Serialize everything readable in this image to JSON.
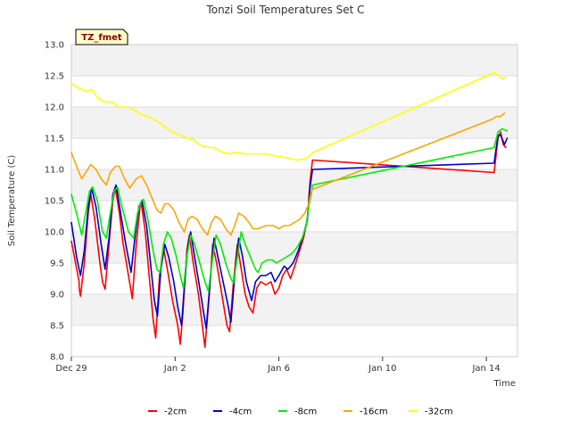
{
  "chart_data": {
    "type": "line",
    "title": "Tonzi Soil Temperatures Set C",
    "xlabel": "Time",
    "ylabel": "Soil Temperature (C)",
    "ylim": [
      8.0,
      13.0
    ],
    "xlim": [
      0,
      17.2
    ],
    "yticks": [
      "8.0",
      "8.5",
      "9.0",
      "9.5",
      "10.0",
      "10.5",
      "11.0",
      "11.5",
      "12.0",
      "12.5",
      "13.0"
    ],
    "xticks": [
      {
        "label": "Dec 29",
        "day": 0
      },
      {
        "label": "Jan 2",
        "day": 4
      },
      {
        "label": "Jan 6",
        "day": 8
      },
      {
        "label": "Jan 10",
        "day": 12
      },
      {
        "label": "Jan 14",
        "day": 16
      }
    ],
    "site_label": "TZ_fmet",
    "legend_position": "bottom",
    "series": [
      {
        "name": "-2cm",
        "color": "#ff0000",
        "points": [
          [
            0.0,
            9.85
          ],
          [
            0.3,
            9.2
          ],
          [
            0.3,
            9.1
          ],
          [
            0.35,
            8.97
          ],
          [
            0.5,
            9.5
          ],
          [
            0.65,
            10.3
          ],
          [
            0.75,
            10.6
          ],
          [
            0.9,
            10.2
          ],
          [
            1.1,
            9.5
          ],
          [
            1.2,
            9.2
          ],
          [
            1.3,
            9.08
          ],
          [
            1.45,
            9.8
          ],
          [
            1.6,
            10.5
          ],
          [
            1.7,
            10.7
          ],
          [
            1.85,
            10.3
          ],
          [
            2.0,
            9.8
          ],
          [
            2.2,
            9.3
          ],
          [
            2.35,
            8.93
          ],
          [
            2.5,
            9.8
          ],
          [
            2.65,
            10.4
          ],
          [
            2.7,
            10.45
          ],
          [
            2.85,
            10.0
          ],
          [
            3.0,
            9.3
          ],
          [
            3.15,
            8.6
          ],
          [
            3.25,
            8.3
          ],
          [
            3.4,
            9.3
          ],
          [
            3.55,
            9.75
          ],
          [
            3.7,
            9.4
          ],
          [
            3.9,
            8.9
          ],
          [
            4.1,
            8.5
          ],
          [
            4.2,
            8.2
          ],
          [
            4.3,
            8.7
          ],
          [
            4.45,
            9.7
          ],
          [
            4.55,
            9.95
          ],
          [
            4.7,
            9.5
          ],
          [
            4.9,
            9.0
          ],
          [
            5.05,
            8.5
          ],
          [
            5.15,
            8.15
          ],
          [
            5.3,
            8.9
          ],
          [
            5.45,
            9.8
          ],
          [
            5.6,
            9.5
          ],
          [
            5.8,
            9.0
          ],
          [
            6.0,
            8.5
          ],
          [
            6.1,
            8.4
          ],
          [
            6.25,
            9.2
          ],
          [
            6.4,
            9.8
          ],
          [
            6.55,
            9.4
          ],
          [
            6.7,
            9.0
          ],
          [
            6.85,
            8.8
          ],
          [
            7.0,
            8.7
          ],
          [
            7.15,
            9.1
          ],
          [
            7.3,
            9.2
          ],
          [
            7.5,
            9.15
          ],
          [
            7.7,
            9.2
          ],
          [
            7.85,
            9.0
          ],
          [
            8.0,
            9.1
          ],
          [
            8.15,
            9.3
          ],
          [
            8.3,
            9.4
          ],
          [
            8.45,
            9.25
          ],
          [
            8.65,
            9.5
          ],
          [
            8.8,
            9.7
          ],
          [
            8.95,
            9.9
          ],
          [
            9.1,
            10.2
          ],
          [
            9.2,
            10.8
          ],
          [
            9.3,
            11.15
          ],
          [
            16.3,
            10.95
          ],
          [
            16.45,
            11.5
          ],
          [
            16.55,
            11.6
          ],
          [
            16.65,
            11.4
          ],
          [
            16.75,
            11.35
          ]
        ]
      },
      {
        "name": "-4cm",
        "color": "#0000cc",
        "points": [
          [
            0.0,
            10.15
          ],
          [
            0.2,
            9.6
          ],
          [
            0.35,
            9.3
          ],
          [
            0.5,
            9.7
          ],
          [
            0.65,
            10.4
          ],
          [
            0.78,
            10.7
          ],
          [
            0.95,
            10.4
          ],
          [
            1.15,
            9.8
          ],
          [
            1.3,
            9.4
          ],
          [
            1.45,
            9.9
          ],
          [
            1.6,
            10.6
          ],
          [
            1.72,
            10.75
          ],
          [
            1.9,
            10.3
          ],
          [
            2.1,
            9.8
          ],
          [
            2.3,
            9.35
          ],
          [
            2.45,
            9.9
          ],
          [
            2.6,
            10.4
          ],
          [
            2.72,
            10.5
          ],
          [
            2.9,
            10.1
          ],
          [
            3.05,
            9.5
          ],
          [
            3.2,
            8.9
          ],
          [
            3.32,
            8.65
          ],
          [
            3.45,
            9.4
          ],
          [
            3.6,
            9.8
          ],
          [
            3.75,
            9.6
          ],
          [
            3.95,
            9.2
          ],
          [
            4.1,
            8.8
          ],
          [
            4.25,
            8.5
          ],
          [
            4.35,
            9.1
          ],
          [
            4.5,
            9.8
          ],
          [
            4.6,
            10.0
          ],
          [
            4.75,
            9.6
          ],
          [
            4.95,
            9.1
          ],
          [
            5.1,
            8.7
          ],
          [
            5.2,
            8.45
          ],
          [
            5.35,
            9.2
          ],
          [
            5.5,
            9.9
          ],
          [
            5.65,
            9.6
          ],
          [
            5.85,
            9.2
          ],
          [
            6.05,
            8.8
          ],
          [
            6.15,
            8.55
          ],
          [
            6.3,
            9.3
          ],
          [
            6.45,
            9.9
          ],
          [
            6.6,
            9.6
          ],
          [
            6.75,
            9.2
          ],
          [
            6.95,
            8.9
          ],
          [
            7.1,
            9.2
          ],
          [
            7.3,
            9.3
          ],
          [
            7.5,
            9.3
          ],
          [
            7.7,
            9.35
          ],
          [
            7.85,
            9.2
          ],
          [
            8.0,
            9.3
          ],
          [
            8.2,
            9.45
          ],
          [
            8.35,
            9.4
          ],
          [
            8.55,
            9.5
          ],
          [
            8.75,
            9.7
          ],
          [
            8.95,
            9.95
          ],
          [
            9.1,
            10.2
          ],
          [
            9.2,
            10.7
          ],
          [
            9.3,
            11.0
          ],
          [
            16.3,
            11.1
          ],
          [
            16.45,
            11.55
          ],
          [
            16.55,
            11.55
          ],
          [
            16.7,
            11.4
          ],
          [
            16.8,
            11.5
          ]
        ]
      },
      {
        "name": "-8cm",
        "color": "#00ee00",
        "points": [
          [
            0.0,
            10.6
          ],
          [
            0.2,
            10.3
          ],
          [
            0.4,
            9.95
          ],
          [
            0.55,
            10.3
          ],
          [
            0.7,
            10.65
          ],
          [
            0.82,
            10.72
          ],
          [
            1.0,
            10.5
          ],
          [
            1.2,
            10.0
          ],
          [
            1.35,
            9.9
          ],
          [
            1.5,
            10.3
          ],
          [
            1.65,
            10.65
          ],
          [
            1.78,
            10.72
          ],
          [
            1.95,
            10.4
          ],
          [
            2.2,
            10.0
          ],
          [
            2.4,
            9.9
          ],
          [
            2.55,
            10.3
          ],
          [
            2.7,
            10.5
          ],
          [
            2.78,
            10.52
          ],
          [
            2.95,
            10.2
          ],
          [
            3.15,
            9.7
          ],
          [
            3.3,
            9.4
          ],
          [
            3.42,
            9.35
          ],
          [
            3.55,
            9.8
          ],
          [
            3.7,
            10.0
          ],
          [
            3.85,
            9.9
          ],
          [
            4.05,
            9.6
          ],
          [
            4.2,
            9.3
          ],
          [
            4.32,
            9.1
          ],
          [
            4.45,
            9.6
          ],
          [
            4.6,
            9.95
          ],
          [
            4.75,
            9.8
          ],
          [
            4.95,
            9.5
          ],
          [
            5.15,
            9.2
          ],
          [
            5.28,
            9.05
          ],
          [
            5.42,
            9.5
          ],
          [
            5.58,
            9.95
          ],
          [
            5.75,
            9.8
          ],
          [
            5.95,
            9.5
          ],
          [
            6.15,
            9.25
          ],
          [
            6.25,
            9.18
          ],
          [
            6.4,
            9.6
          ],
          [
            6.55,
            10.0
          ],
          [
            6.7,
            9.8
          ],
          [
            6.9,
            9.6
          ],
          [
            7.1,
            9.4
          ],
          [
            7.2,
            9.35
          ],
          [
            7.35,
            9.5
          ],
          [
            7.55,
            9.55
          ],
          [
            7.75,
            9.55
          ],
          [
            7.9,
            9.5
          ],
          [
            8.1,
            9.55
          ],
          [
            8.3,
            9.6
          ],
          [
            8.5,
            9.65
          ],
          [
            8.7,
            9.75
          ],
          [
            8.9,
            9.9
          ],
          [
            9.05,
            10.1
          ],
          [
            9.15,
            10.4
          ],
          [
            9.25,
            10.6
          ],
          [
            9.3,
            10.75
          ],
          [
            16.3,
            11.35
          ],
          [
            16.45,
            11.6
          ],
          [
            16.6,
            11.65
          ],
          [
            16.8,
            11.62
          ]
        ]
      },
      {
        "name": "-16cm",
        "color": "#ffa500",
        "points": [
          [
            0.0,
            11.27
          ],
          [
            0.2,
            11.05
          ],
          [
            0.4,
            10.85
          ],
          [
            0.55,
            10.95
          ],
          [
            0.75,
            11.08
          ],
          [
            0.95,
            11.0
          ],
          [
            1.15,
            10.85
          ],
          [
            1.35,
            10.75
          ],
          [
            1.5,
            10.95
          ],
          [
            1.7,
            11.05
          ],
          [
            1.85,
            11.05
          ],
          [
            2.05,
            10.85
          ],
          [
            2.25,
            10.7
          ],
          [
            2.5,
            10.85
          ],
          [
            2.7,
            10.9
          ],
          [
            2.9,
            10.75
          ],
          [
            3.1,
            10.55
          ],
          [
            3.3,
            10.35
          ],
          [
            3.45,
            10.3
          ],
          [
            3.6,
            10.45
          ],
          [
            3.75,
            10.45
          ],
          [
            3.95,
            10.35
          ],
          [
            4.15,
            10.15
          ],
          [
            4.35,
            10.0
          ],
          [
            4.5,
            10.2
          ],
          [
            4.65,
            10.25
          ],
          [
            4.85,
            10.2
          ],
          [
            5.05,
            10.05
          ],
          [
            5.25,
            9.95
          ],
          [
            5.4,
            10.15
          ],
          [
            5.55,
            10.25
          ],
          [
            5.75,
            10.2
          ],
          [
            5.95,
            10.05
          ],
          [
            6.15,
            9.95
          ],
          [
            6.3,
            10.1
          ],
          [
            6.45,
            10.3
          ],
          [
            6.65,
            10.25
          ],
          [
            6.85,
            10.15
          ],
          [
            7.0,
            10.05
          ],
          [
            7.2,
            10.05
          ],
          [
            7.5,
            10.1
          ],
          [
            7.8,
            10.1
          ],
          [
            8.0,
            10.05
          ],
          [
            8.2,
            10.1
          ],
          [
            8.4,
            10.1
          ],
          [
            8.6,
            10.15
          ],
          [
            8.8,
            10.2
          ],
          [
            9.0,
            10.3
          ],
          [
            9.15,
            10.45
          ],
          [
            9.25,
            10.65
          ],
          [
            9.3,
            10.68
          ],
          [
            16.2,
            11.8
          ],
          [
            16.4,
            11.85
          ],
          [
            16.55,
            11.85
          ],
          [
            16.7,
            11.9
          ]
        ]
      },
      {
        "name": "-32cm",
        "color": "#ffff00",
        "points": [
          [
            0.0,
            12.38
          ],
          [
            0.3,
            12.3
          ],
          [
            0.6,
            12.25
          ],
          [
            0.8,
            12.28
          ],
          [
            1.0,
            12.15
          ],
          [
            1.3,
            12.08
          ],
          [
            1.6,
            12.08
          ],
          [
            1.8,
            12.0
          ],
          [
            2.1,
            12.0
          ],
          [
            2.3,
            11.98
          ],
          [
            2.6,
            11.9
          ],
          [
            2.9,
            11.85
          ],
          [
            3.1,
            11.82
          ],
          [
            3.4,
            11.75
          ],
          [
            3.7,
            11.65
          ],
          [
            3.9,
            11.6
          ],
          [
            4.2,
            11.55
          ],
          [
            4.5,
            11.5
          ],
          [
            4.7,
            11.48
          ],
          [
            5.0,
            11.38
          ],
          [
            5.3,
            11.35
          ],
          [
            5.5,
            11.35
          ],
          [
            5.8,
            11.28
          ],
          [
            6.1,
            11.25
          ],
          [
            6.4,
            11.28
          ],
          [
            6.6,
            11.25
          ],
          [
            6.9,
            11.25
          ],
          [
            7.2,
            11.25
          ],
          [
            7.5,
            11.25
          ],
          [
            7.8,
            11.22
          ],
          [
            8.1,
            11.2
          ],
          [
            8.4,
            11.18
          ],
          [
            8.7,
            11.15
          ],
          [
            9.0,
            11.17
          ],
          [
            9.15,
            11.2
          ],
          [
            9.3,
            11.27
          ],
          [
            16.3,
            12.55
          ],
          [
            16.5,
            12.5
          ],
          [
            16.6,
            12.45
          ],
          [
            16.75,
            12.48
          ]
        ]
      }
    ]
  }
}
